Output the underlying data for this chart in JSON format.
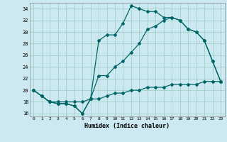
{
  "xlabel": "Humidex (Indice chaleur)",
  "background_color": "#cce8f0",
  "grid_color": "#99ccbb",
  "line_color": "#006666",
  "xlim": [
    -0.5,
    23.5
  ],
  "ylim": [
    15.5,
    35.0
  ],
  "xtick_labels": [
    "0",
    "1",
    "2",
    "3",
    "4",
    "5",
    "6",
    "7",
    "8",
    "9",
    "10",
    "11",
    "12",
    "13",
    "14",
    "15",
    "16",
    "17",
    "18",
    "19",
    "20",
    "21",
    "22",
    "23"
  ],
  "ytick_values": [
    16,
    18,
    20,
    22,
    24,
    26,
    28,
    30,
    32,
    34
  ],
  "line1_x": [
    0,
    1,
    2,
    3,
    4,
    5,
    6,
    7,
    8,
    9,
    10,
    11,
    12,
    13,
    14,
    15,
    16,
    17,
    18,
    19,
    20,
    21,
    22,
    23
  ],
  "line1_y": [
    20.0,
    19.0,
    18.0,
    17.7,
    17.7,
    17.3,
    16.0,
    18.5,
    28.5,
    29.5,
    29.5,
    31.5,
    34.5,
    34.0,
    33.5,
    33.5,
    32.5,
    32.5,
    32.0,
    30.5,
    30.0,
    28.5,
    25.0,
    21.5
  ],
  "line2_x": [
    0,
    1,
    2,
    3,
    4,
    5,
    6,
    7,
    8,
    9,
    10,
    11,
    12,
    13,
    14,
    15,
    16,
    17,
    18,
    19,
    20,
    21,
    22,
    23
  ],
  "line2_y": [
    20.0,
    19.0,
    18.0,
    17.7,
    17.7,
    17.3,
    16.0,
    18.5,
    22.5,
    22.5,
    24.0,
    25.0,
    26.5,
    28.0,
    30.5,
    31.0,
    32.0,
    32.5,
    32.0,
    30.5,
    30.0,
    28.5,
    25.0,
    21.5
  ],
  "line3_x": [
    0,
    1,
    2,
    3,
    4,
    5,
    6,
    7,
    8,
    9,
    10,
    11,
    12,
    13,
    14,
    15,
    16,
    17,
    18,
    19,
    20,
    21,
    22,
    23
  ],
  "line3_y": [
    20.0,
    19.0,
    18.0,
    18.0,
    18.0,
    18.0,
    18.0,
    18.5,
    18.5,
    19.0,
    19.5,
    19.5,
    20.0,
    20.0,
    20.5,
    20.5,
    20.5,
    21.0,
    21.0,
    21.0,
    21.0,
    21.5,
    21.5,
    21.5
  ]
}
